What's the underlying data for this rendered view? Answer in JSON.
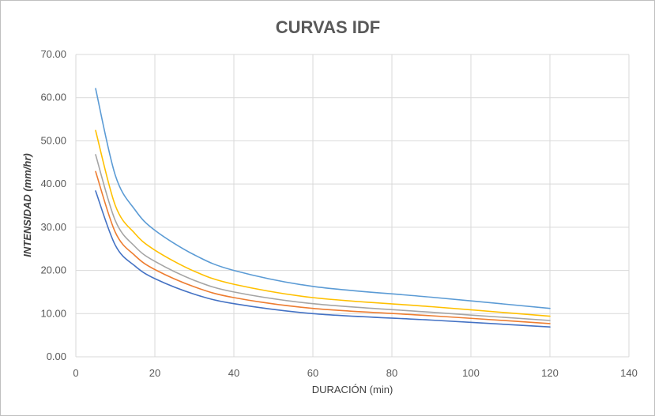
{
  "chart_data": {
    "type": "line",
    "title": "CURVAS IDF",
    "xlabel": "DURACIÓN (min)",
    "ylabel": "INTENSIDAD (mm/hr)",
    "xlim": [
      0,
      140
    ],
    "ylim": [
      0,
      70
    ],
    "x_ticks": [
      "0",
      "20",
      "40",
      "60",
      "80",
      "100",
      "120",
      "140"
    ],
    "y_ticks": [
      "0.00",
      "10.00",
      "20.00",
      "30.00",
      "40.00",
      "50.00",
      "60.00",
      "70.00"
    ],
    "grid": true,
    "legend": "none",
    "x": [
      5,
      10,
      15,
      20,
      30,
      40,
      60,
      90,
      120
    ],
    "series": [
      {
        "color": "#5b9bd5",
        "values": [
          62.1,
          42.0,
          34.0,
          29.3,
          23.6,
          20.0,
          16.3,
          13.8,
          11.2
        ]
      },
      {
        "color": "#ffc000",
        "values": [
          52.4,
          35.0,
          28.5,
          24.7,
          19.8,
          16.8,
          13.7,
          11.6,
          9.4
        ]
      },
      {
        "color": "#a5a5a5",
        "values": [
          46.8,
          31.5,
          25.5,
          22.1,
          17.7,
          15.0,
          12.3,
          10.3,
          8.4
        ]
      },
      {
        "color": "#ed7d31",
        "values": [
          42.9,
          28.8,
          23.4,
          20.2,
          16.2,
          13.7,
          11.2,
          9.5,
          7.7
        ]
      },
      {
        "color": "#4472c4",
        "values": [
          38.4,
          25.8,
          21.0,
          18.1,
          14.5,
          12.3,
          10.0,
          8.5,
          6.9
        ]
      }
    ]
  }
}
